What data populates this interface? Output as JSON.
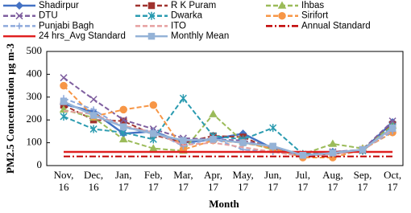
{
  "chart_data": {
    "type": "line",
    "x_label": "Month",
    "y_label": "PM2.5 Concentration µg m-3",
    "categories": [
      "Nov, 16",
      "Dec, 16",
      "Jan, 17",
      "Feb, 17",
      "Mar, 17",
      "Apr, 17",
      "May, 17",
      "Jun, 17",
      "Jul, 17",
      "Aug, 17",
      "Sep, 17",
      "Oct, 17"
    ],
    "ylim": [
      0,
      500
    ],
    "yticks": [
      0,
      100,
      200,
      300,
      400,
      500
    ],
    "grid": false,
    "series": [
      {
        "name": "Shadirpur",
        "color": "#4472c4",
        "marker": "diamond",
        "dash": "solid",
        "values": [
          270,
          235,
          140,
          150,
          100,
          115,
          140,
          75,
          40,
          60,
          65,
          190
        ]
      },
      {
        "name": "R K Puram",
        "color": "#a0332f",
        "marker": "square",
        "dash": "dash",
        "values": [
          265,
          200,
          195,
          135,
          100,
          130,
          125,
          70,
          45,
          50,
          70,
          180
        ]
      },
      {
        "name": "Ihbas",
        "color": "#9bbb59",
        "marker": "triangle",
        "dash": "dash",
        "values": [
          245,
          210,
          115,
          75,
          65,
          225,
          105,
          70,
          50,
          95,
          75,
          175
        ]
      },
      {
        "name": "DTU",
        "color": "#7f5f9f",
        "marker": "x",
        "dash": "dash",
        "values": [
          385,
          290,
          200,
          160,
          120,
          115,
          110,
          80,
          45,
          60,
          70,
          195
        ]
      },
      {
        "name": "Dwarka",
        "color": "#2b9bb0",
        "marker": "star",
        "dash": "dash",
        "values": [
          215,
          160,
          145,
          115,
          295,
          130,
          115,
          165,
          50,
          55,
          65,
          170
        ]
      },
      {
        "name": "Sirifort",
        "color": "#f79646",
        "marker": "circle",
        "dash": "dash",
        "values": [
          350,
          215,
          245,
          265,
          70,
          110,
          100,
          75,
          35,
          35,
          70,
          145
        ]
      },
      {
        "name": "Punjabi Bagh",
        "color": "#8ea9db",
        "marker": "plus",
        "dash": "dash",
        "values": [
          295,
          245,
          165,
          150,
          85,
          120,
          70,
          60,
          45,
          55,
          70,
          150
        ]
      },
      {
        "name": "ITO",
        "color": "#e6a0a0",
        "marker": "none",
        "dash": "dash",
        "values": [
          240,
          225,
          175,
          145,
          90,
          100,
          80,
          60,
          40,
          50,
          65,
          160
        ]
      },
      {
        "name": "Annual Standard",
        "color": "#c00000",
        "marker": "none",
        "dash": "dashdot",
        "values": [
          40,
          40,
          40,
          40,
          40,
          40,
          40,
          40,
          40,
          40,
          40,
          40
        ]
      },
      {
        "name": "24 hrs_Avg Standard",
        "color": "#e02020",
        "marker": "none",
        "dash": "solid",
        "values": [
          60,
          60,
          60,
          60,
          60,
          60,
          60,
          60,
          60,
          60,
          60,
          60
        ]
      },
      {
        "name": "Monthly Mean",
        "color": "#95b3d7",
        "marker": "square",
        "dash": "solid",
        "values": [
          280,
          220,
          170,
          140,
          110,
          115,
          100,
          85,
          45,
          55,
          70,
          165
        ]
      }
    ]
  }
}
